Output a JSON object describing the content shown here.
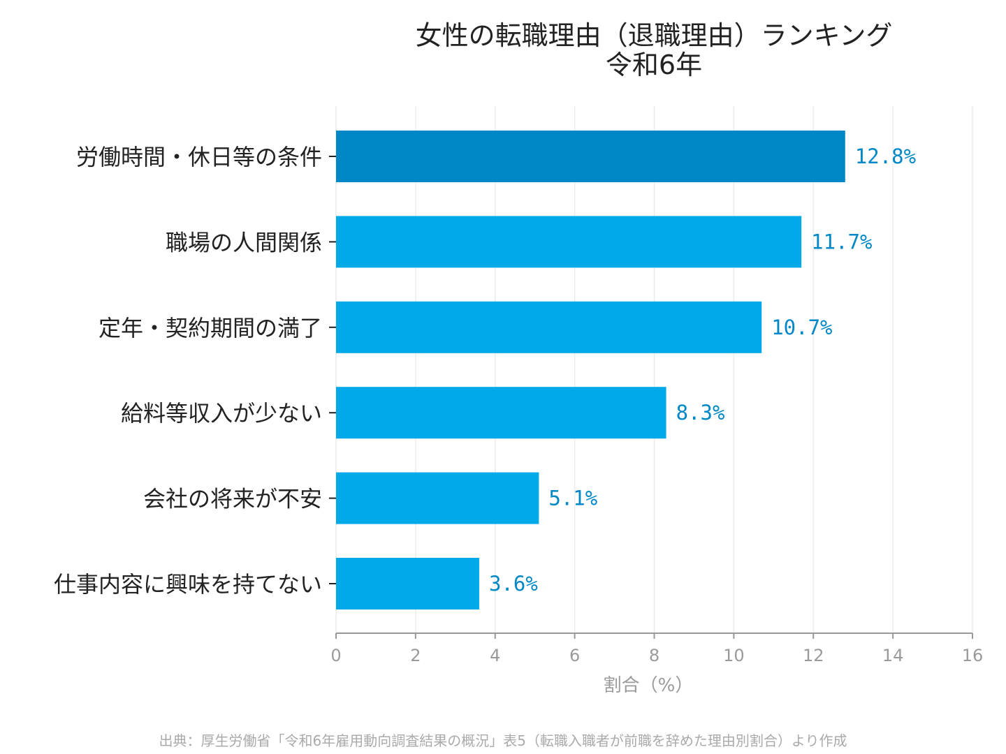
{
  "chart_data": {
    "type": "bar",
    "orientation": "horizontal",
    "title": "女性の転職理由（退職理由）ランキング",
    "subtitle": "令和6年",
    "categories": [
      "労働時間・休日等の条件",
      "職場の人間関係",
      "定年・契約期間の満了",
      "給料等収入が少ない",
      "会社の将来が不安",
      "仕事内容に興味を持てない"
    ],
    "values": [
      12.8,
      11.7,
      10.7,
      8.3,
      5.1,
      3.6
    ],
    "value_labels": [
      "12.8%",
      "11.7%",
      "10.7%",
      "8.3%",
      "5.1%",
      "3.6%"
    ],
    "xlabel": "割合（%）",
    "xlim": [
      0,
      16
    ],
    "xticks": [
      0,
      2,
      4,
      6,
      8,
      10,
      12,
      14,
      16
    ],
    "grid": "vertical",
    "colors": {
      "highlight": "#0088c6",
      "bar": "#00aae8",
      "value_label": "#0088c6",
      "grid": "#ebebeb",
      "axis": "#999999"
    }
  },
  "source": "出典：厚生労働省「令和6年雇用動向調査結果の概況」表5（転職入職者が前職を辞めた理由別割合）より作成"
}
